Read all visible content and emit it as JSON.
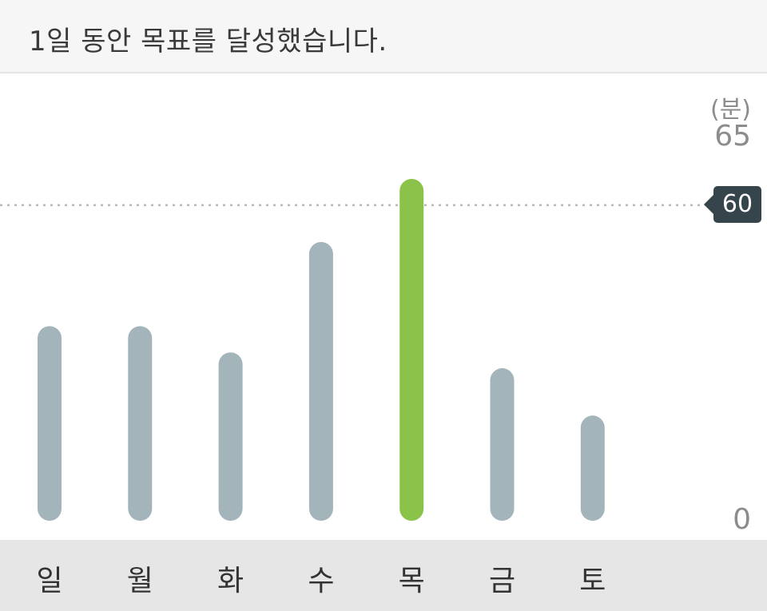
{
  "header": {
    "message": "1일 동안 목표를 달성했습니다."
  },
  "chart_data": {
    "type": "bar",
    "categories": [
      "일",
      "월",
      "화",
      "수",
      "목",
      "금",
      "토"
    ],
    "values": [
      37,
      37,
      32,
      53,
      65,
      29,
      20
    ],
    "highlight_index": 4,
    "goal": 60,
    "unit": "(분)",
    "ylim": [
      0,
      65
    ],
    "ytick_max": "65",
    "ytick_min": "0",
    "goal_label": "60",
    "colors": {
      "bar": "#a4b4bb",
      "highlight": "#8bc34a",
      "goal_line": "#b8b8b8",
      "goal_badge": "#36444c"
    },
    "grid": false,
    "legend": "none"
  }
}
